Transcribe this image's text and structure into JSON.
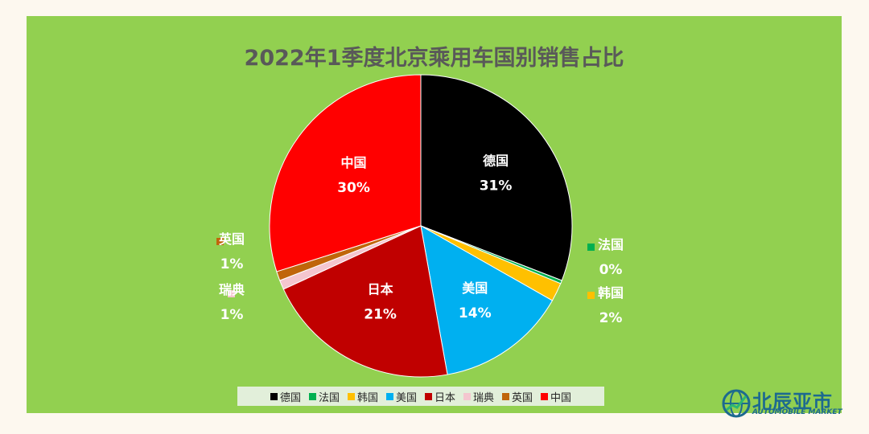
{
  "chart_data": {
    "type": "pie",
    "title": "2022年1季度北京乘用车国别销售占比",
    "categories": [
      "德国",
      "法国",
      "韩国",
      "美国",
      "日本",
      "瑞典",
      "英国",
      "中国"
    ],
    "values": [
      31,
      0,
      2,
      14,
      21,
      1,
      1,
      30
    ],
    "data_labels": [
      "31%",
      "0%",
      "2%",
      "14%",
      "21%",
      "1%",
      "1%",
      "30%"
    ],
    "colors": [
      "#000000",
      "#00b050",
      "#ffc000",
      "#00b0f0",
      "#c00000",
      "#f4c6cf",
      "#c0650a",
      "#ff0000"
    ],
    "legend_position": "bottom"
  },
  "logo": {
    "name": "北辰亚市",
    "subtitle": "AUTOMOBILE MARKET",
    "icon": "logo-globe-icon"
  }
}
